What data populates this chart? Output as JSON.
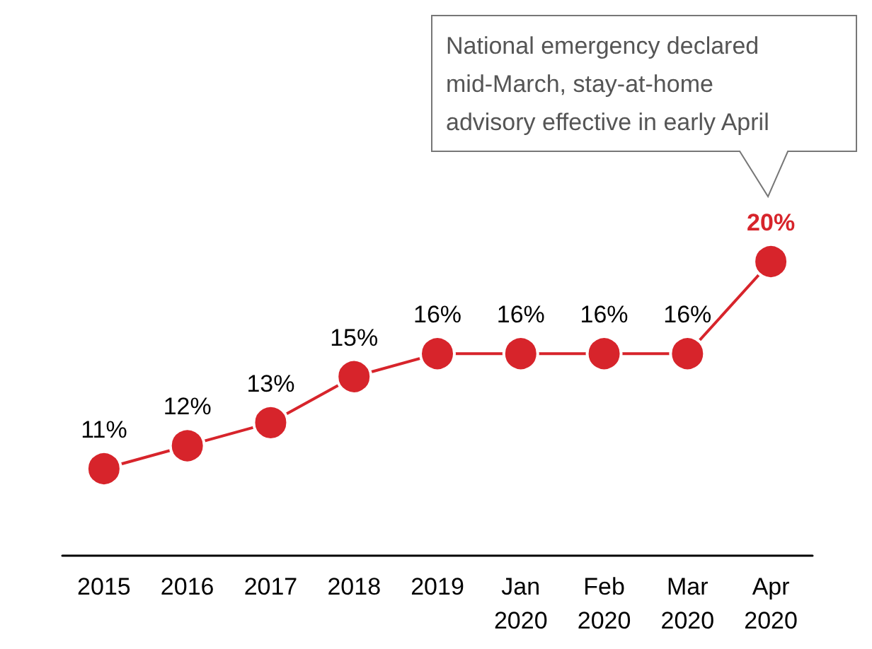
{
  "chart_data": {
    "type": "line",
    "categories": [
      "2015",
      "2016",
      "2017",
      "2018",
      "2019",
      "Jan\n2020",
      "Feb\n2020",
      "Mar\n2020",
      "Apr\n2020"
    ],
    "series": [
      {
        "color": "#d7242b",
        "values": [
          11,
          12,
          13,
          15,
          16,
          16,
          16,
          16,
          20
        ],
        "value_labels": [
          "11%",
          "12%",
          "13%",
          "15%",
          "16%",
          "16%",
          "16%",
          "16%",
          "20%"
        ]
      }
    ],
    "marker": "circle",
    "grid": false,
    "annotations": [
      "National emergency declared\nmid-March, stay-at-home\nadvisory effective in early April"
    ]
  }
}
